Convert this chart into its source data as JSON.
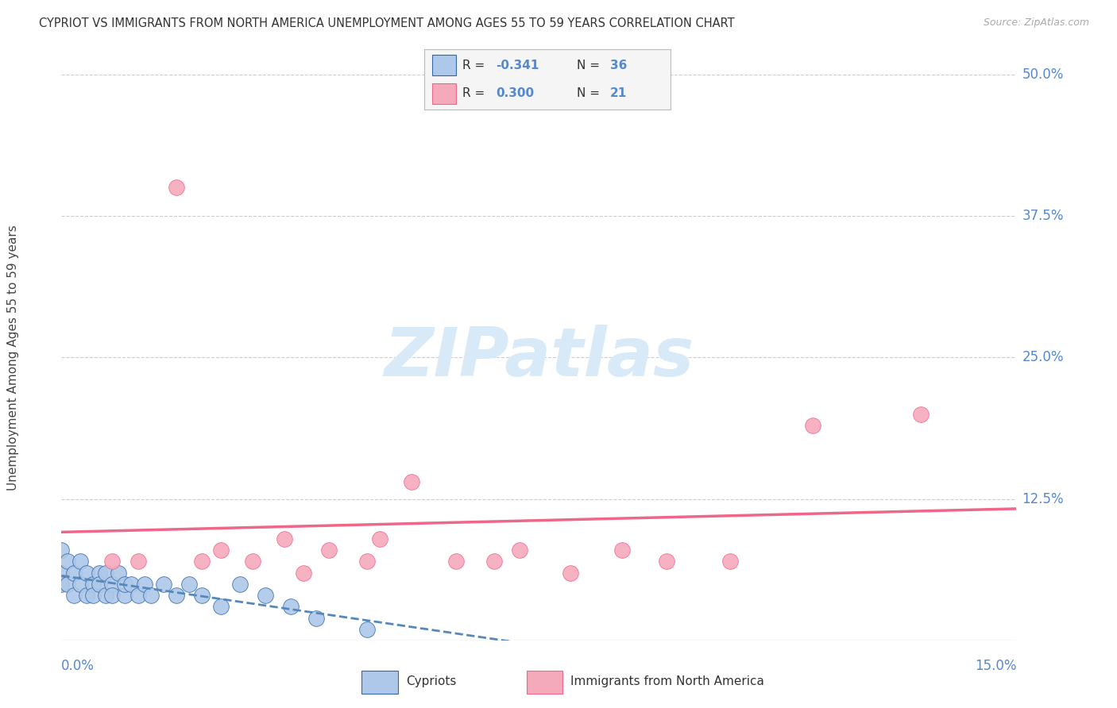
{
  "title": "CYPRIOT VS IMMIGRANTS FROM NORTH AMERICA UNEMPLOYMENT AMONG AGES 55 TO 59 YEARS CORRELATION CHART",
  "source": "Source: ZipAtlas.com",
  "ylabel_text": "Unemployment Among Ages 55 to 59 years",
  "legend_label1": "Cypriots",
  "legend_label2": "Immigrants from North America",
  "r1": -0.341,
  "n1": 36,
  "r2": 0.3,
  "n2": 21,
  "color_blue": "#adc8e8",
  "color_pink": "#f5aabc",
  "color_blue_line": "#5588bb",
  "color_pink_line": "#ee6688",
  "color_blue_dark": "#3366aa",
  "background_color": "#ffffff",
  "grid_color": "#cccccc",
  "title_color": "#333333",
  "axis_label_color": "#5588cc",
  "xlim": [
    0.0,
    0.15
  ],
  "ylim": [
    0.0,
    0.5
  ],
  "ytick_vals": [
    0.0,
    0.125,
    0.25,
    0.375,
    0.5
  ],
  "ytick_labels": [
    "",
    "12.5%",
    "25.0%",
    "37.5%",
    "50.0%"
  ],
  "cypriot_x": [
    0.0,
    0.0,
    0.0,
    0.001,
    0.001,
    0.002,
    0.002,
    0.003,
    0.003,
    0.004,
    0.004,
    0.005,
    0.005,
    0.006,
    0.006,
    0.007,
    0.007,
    0.008,
    0.008,
    0.009,
    0.01,
    0.01,
    0.011,
    0.012,
    0.013,
    0.014,
    0.016,
    0.018,
    0.02,
    0.022,
    0.025,
    0.028,
    0.032,
    0.036,
    0.04,
    0.048
  ],
  "cypriot_y": [
    0.08,
    0.06,
    0.05,
    0.07,
    0.05,
    0.06,
    0.04,
    0.07,
    0.05,
    0.06,
    0.04,
    0.05,
    0.04,
    0.06,
    0.05,
    0.04,
    0.06,
    0.05,
    0.04,
    0.06,
    0.04,
    0.05,
    0.05,
    0.04,
    0.05,
    0.04,
    0.05,
    0.04,
    0.05,
    0.04,
    0.03,
    0.05,
    0.04,
    0.03,
    0.02,
    0.01
  ],
  "immigrant_x": [
    0.008,
    0.012,
    0.018,
    0.022,
    0.025,
    0.03,
    0.035,
    0.038,
    0.042,
    0.048,
    0.05,
    0.055,
    0.062,
    0.068,
    0.072,
    0.08,
    0.088,
    0.095,
    0.105,
    0.118,
    0.135
  ],
  "immigrant_y": [
    0.07,
    0.07,
    0.4,
    0.07,
    0.08,
    0.07,
    0.09,
    0.06,
    0.08,
    0.07,
    0.09,
    0.14,
    0.07,
    0.07,
    0.08,
    0.06,
    0.08,
    0.07,
    0.07,
    0.19,
    0.2
  ]
}
